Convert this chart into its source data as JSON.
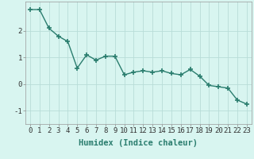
{
  "x": [
    0,
    1,
    2,
    3,
    4,
    5,
    6,
    7,
    8,
    9,
    10,
    11,
    12,
    13,
    14,
    15,
    16,
    17,
    18,
    19,
    20,
    21,
    22,
    23
  ],
  "y": [
    2.8,
    2.8,
    2.1,
    1.8,
    1.6,
    0.6,
    1.1,
    0.9,
    1.05,
    1.05,
    0.35,
    0.45,
    0.5,
    0.45,
    0.5,
    0.4,
    0.35,
    0.55,
    0.3,
    -0.05,
    -0.1,
    -0.15,
    -0.6,
    -0.75
  ],
  "line_color": "#2a7d6e",
  "marker": "+",
  "marker_size": 4,
  "bg_color": "#d8f5f0",
  "grid_color": "#b8ddd8",
  "xlabel": "Humidex (Indice chaleur)",
  "xlim": [
    -0.5,
    23.5
  ],
  "ylim": [
    -1.5,
    3.1
  ],
  "yticks": [
    -1,
    0,
    1,
    2
  ],
  "xticks": [
    0,
    1,
    2,
    3,
    4,
    5,
    6,
    7,
    8,
    9,
    10,
    11,
    12,
    13,
    14,
    15,
    16,
    17,
    18,
    19,
    20,
    21,
    22,
    23
  ],
  "xlabel_fontsize": 7.5,
  "tick_fontsize": 6.5,
  "line_width": 1.0,
  "marker_linewidth": 1.2
}
